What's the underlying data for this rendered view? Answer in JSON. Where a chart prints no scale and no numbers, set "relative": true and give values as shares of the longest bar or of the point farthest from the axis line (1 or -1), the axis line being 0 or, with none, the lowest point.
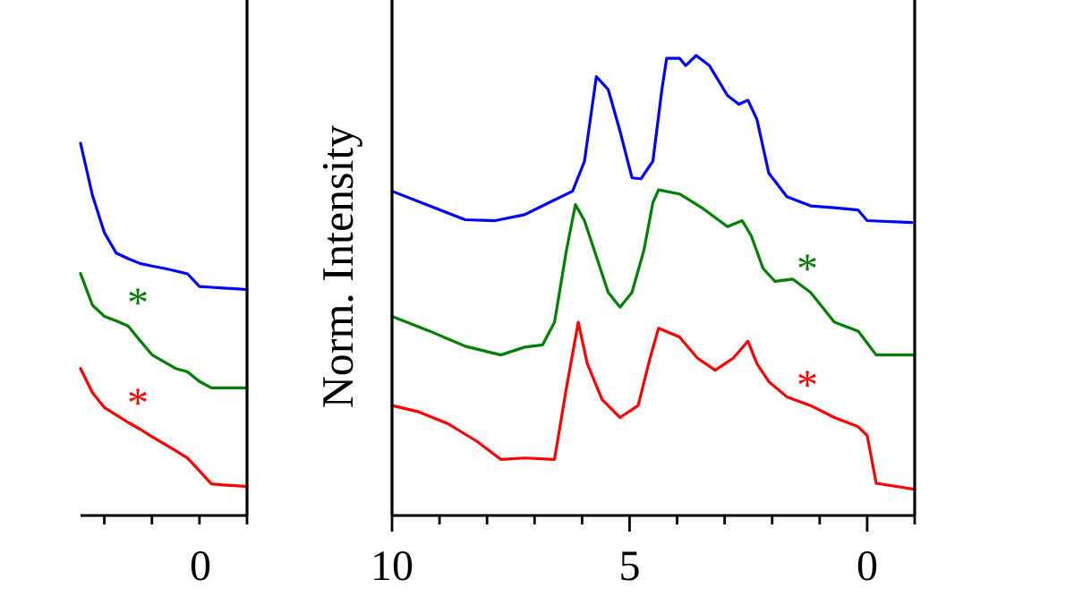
{
  "chart_data": [
    {
      "type": "line",
      "relative": true,
      "categories": [
        null,
        null,
        null,
        null,
        null,
        null,
        null,
        null,
        null,
        null,
        null,
        null,
        null,
        null,
        null
      ],
      "line_style": "solid",
      "marker": "none",
      "annotations": [
        "*",
        "*",
        "0"
      ],
      "series": [
        {
          "color": "#0000ff",
          "values": [
            1.0,
            0.86,
            0.76,
            0.705,
            0.69,
            0.677,
            0.67,
            0.664,
            0.657,
            0.649,
            0.615,
            0.613,
            0.611,
            0.609,
            0.607
          ]
        },
        {
          "color": "#008000",
          "values": [
            0.65,
            0.565,
            0.535,
            0.523,
            0.509,
            0.47,
            0.432,
            0.413,
            0.395,
            0.386,
            0.36,
            0.343,
            0.343,
            0.343,
            0.343
          ]
        },
        {
          "color": "#ff0000",
          "values": [
            0.395,
            0.33,
            0.29,
            0.27,
            0.25,
            0.232,
            0.212,
            0.193,
            0.174,
            0.154,
            0.12,
            0.085,
            0.082,
            0.08,
            0.078
          ]
        }
      ]
    },
    {
      "type": "line",
      "relative": true,
      "ylabel": "Norm. Intensity",
      "xlim": [
        10,
        -1
      ],
      "xticks": [
        10,
        {
          "value": 9,
          "label": null
        },
        {
          "value": 8,
          "label": null
        },
        {
          "value": 7,
          "label": null
        },
        {
          "value": 6,
          "label": null
        },
        5,
        {
          "value": 4,
          "label": null
        },
        {
          "value": 3,
          "label": null
        },
        {
          "value": 2,
          "label": null
        },
        {
          "value": 1,
          "label": null
        },
        0,
        {
          "value": -1,
          "label": null
        }
      ],
      "tick_labels": "x",
      "line_style": "solid",
      "marker": "none",
      "annotations": [
        "*",
        "*"
      ],
      "series": [
        {
          "color": "#0000ff",
          "x": [
            10,
            9.21,
            8.46,
            7.83,
            7.21,
            6.7,
            6.2,
            5.95,
            5.7,
            5.45,
            5.2,
            4.95,
            4.76,
            4.51,
            4.32,
            4.22,
            3.95,
            3.82,
            3.6,
            3.32,
            2.94,
            2.7,
            2.51,
            2.32,
            2.07,
            1.69,
            1.19,
            0.69,
            0.19,
            0,
            -0.94
          ],
          "values": [
            0.705,
            0.673,
            0.643,
            0.641,
            0.654,
            0.68,
            0.705,
            0.77,
            0.954,
            0.926,
            0.835,
            0.734,
            0.732,
            0.77,
            0.926,
            0.994,
            0.994,
            0.978,
            1.0,
            0.978,
            0.913,
            0.894,
            0.903,
            0.861,
            0.744,
            0.693,
            0.673,
            0.669,
            0.664,
            0.641,
            0.637
          ]
        },
        {
          "color": "#008000",
          "x": [
            10,
            9.21,
            8.46,
            7.71,
            7.21,
            6.83,
            6.58,
            6.33,
            6.14,
            5.95,
            5.7,
            5.45,
            5.2,
            4.95,
            4.7,
            4.51,
            4.39,
            3.95,
            3.45,
            2.94,
            2.63,
            2.44,
            2.19,
            1.94,
            1.57,
            1.19,
            0.69,
            0.19,
            0,
            -0.19,
            -1
          ],
          "values": [
            0.433,
            0.401,
            0.368,
            0.349,
            0.366,
            0.371,
            0.42,
            0.576,
            0.676,
            0.641,
            0.563,
            0.485,
            0.453,
            0.485,
            0.576,
            0.68,
            0.708,
            0.699,
            0.667,
            0.628,
            0.641,
            0.608,
            0.537,
            0.509,
            0.514,
            0.485,
            0.42,
            0.401,
            0.375,
            0.349,
            0.349
          ]
        },
        {
          "color": "#ff0000",
          "x": [
            10,
            9.46,
            8.83,
            8.21,
            7.71,
            7.21,
            6.58,
            6.33,
            6.08,
            5.89,
            5.58,
            5.2,
            4.82,
            4.57,
            4.39,
            3.95,
            3.57,
            3.2,
            2.82,
            2.51,
            2.32,
            2.07,
            1.69,
            1.19,
            0.69,
            0.19,
            0,
            -0.19,
            -1
          ],
          "values": [
            0.239,
            0.226,
            0.2,
            0.161,
            0.122,
            0.125,
            0.122,
            0.277,
            0.42,
            0.33,
            0.252,
            0.213,
            0.239,
            0.342,
            0.407,
            0.388,
            0.342,
            0.316,
            0.342,
            0.379,
            0.33,
            0.291,
            0.258,
            0.239,
            0.213,
            0.193,
            0.174,
            0.07,
            0.057
          ]
        }
      ]
    }
  ]
}
